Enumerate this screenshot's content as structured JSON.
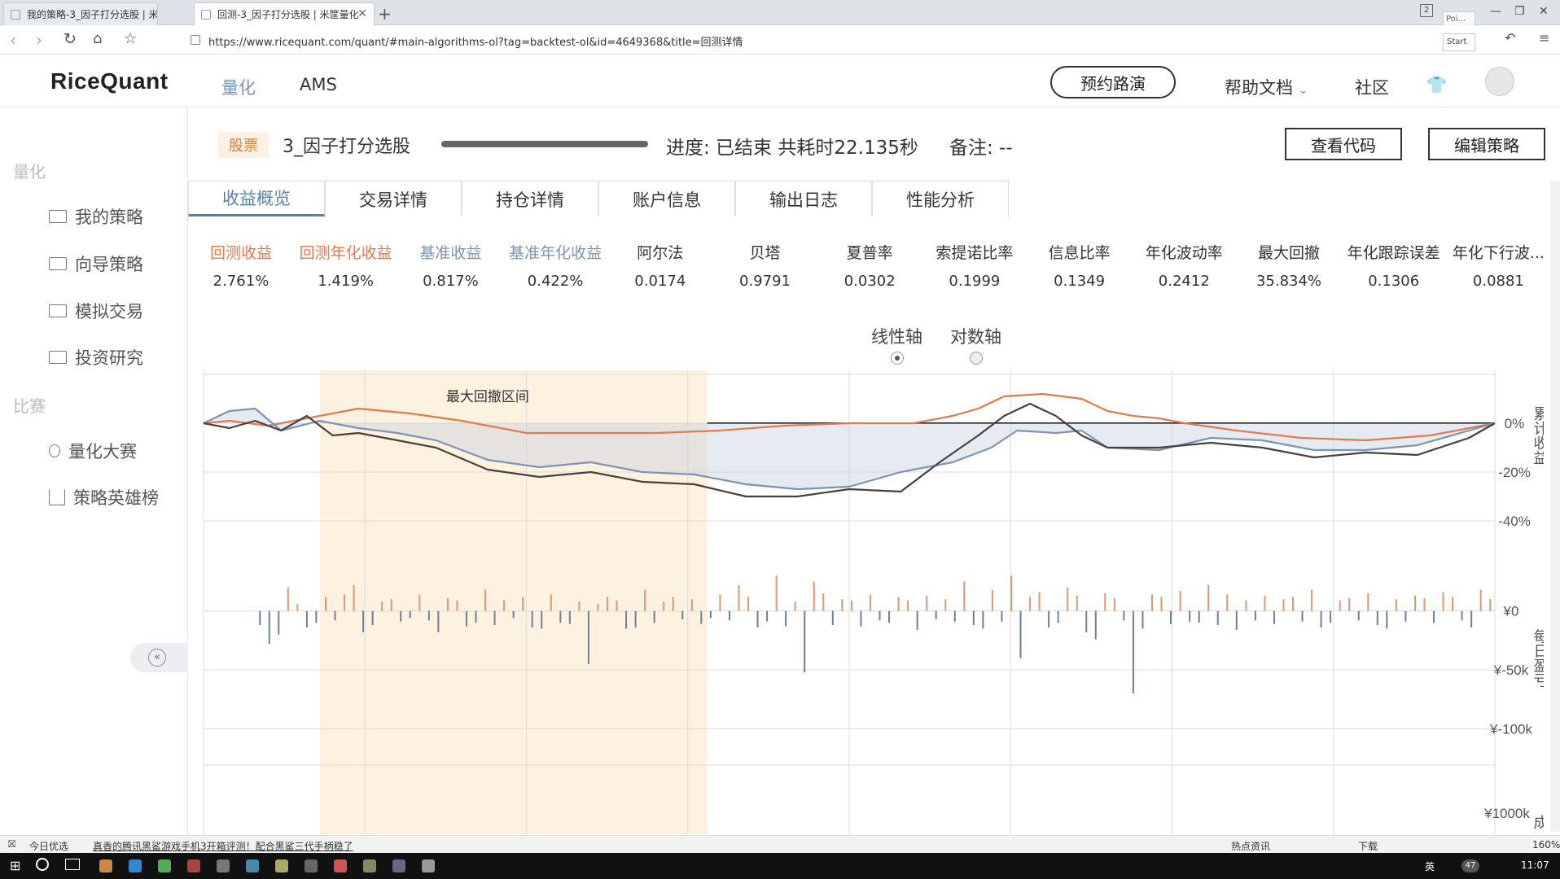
{
  "browser": {
    "tabs": [
      {
        "title": "我的策略-3_因子打分选股 | 米筐"
      },
      {
        "title": "回测-3_因子打分选股 | 米筐量化"
      }
    ],
    "tab_counter": "2",
    "url": "https://www.ricequant.com/quant/#main-algorithms-ol?tag=backtest-ol&id=4649368&title=回测详情",
    "overlay_label_1": "Poi...",
    "overlay_label_2": "Start"
  },
  "site": {
    "logo": "RiceQuant",
    "nav": [
      "量化",
      "AMS"
    ],
    "demo_button": "预约路演",
    "help": "帮助文档",
    "community": "社区"
  },
  "sidebar": {
    "section1": "量化",
    "items1": [
      "我的策略",
      "向导策略",
      "模拟交易",
      "投资研究"
    ],
    "section2": "比赛",
    "items2": [
      "量化大赛",
      "策略英雄榜"
    ]
  },
  "header": {
    "tag": "股票",
    "strategy_name": "3_因子打分选股",
    "progress": "进度: 已结束 共耗时22.135秒",
    "note": "备注: --",
    "view_code": "查看代码",
    "edit_strategy": "编辑策略"
  },
  "tabs": [
    "收益概览",
    "交易详情",
    "持仓详情",
    "账户信息",
    "输出日志",
    "性能分析"
  ],
  "metrics": [
    {
      "label": "回测收益",
      "value": "2.761%",
      "color": "#e07b4f"
    },
    {
      "label": "回测年化收益",
      "value": "1.419%",
      "color": "#e07b4f"
    },
    {
      "label": "基准收益",
      "value": "0.817%",
      "color": "#7d94b4"
    },
    {
      "label": "基准年化收益",
      "value": "0.422%",
      "color": "#7d94b4"
    },
    {
      "label": "阿尔法",
      "value": "0.0174",
      "color": "#333333"
    },
    {
      "label": "贝塔",
      "value": "0.9791",
      "color": "#333333"
    },
    {
      "label": "夏普率",
      "value": "0.0302",
      "color": "#333333"
    },
    {
      "label": "索提诺比率",
      "value": "0.1999",
      "color": "#333333"
    },
    {
      "label": "信息比率",
      "value": "0.1349",
      "color": "#333333"
    },
    {
      "label": "年化波动率",
      "value": "0.2412",
      "color": "#333333"
    },
    {
      "label": "最大回撤",
      "value": "35.834%",
      "color": "#333333"
    },
    {
      "label": "年化跟踪误差",
      "value": "0.1306",
      "color": "#333333"
    },
    {
      "label": "年化下行波...",
      "value": "0.0881",
      "color": "#333333"
    }
  ],
  "axis_toggle": {
    "linear": "线性轴",
    "log": "对数轴",
    "selected": "linear"
  },
  "chart_data": [
    {
      "type": "line",
      "annotation": "最大回撤区间",
      "ylabel": "累计收益",
      "ytick_labels": [
        "0%",
        "-20%",
        "-40%"
      ],
      "yticks": [
        0,
        -20,
        -40
      ],
      "ylim": [
        -45,
        20
      ],
      "x_range": [
        0,
        1
      ],
      "drawdown_window": [
        0.09,
        0.39
      ],
      "grid": true,
      "series": [
        {
          "color": "#e07b4f",
          "x": [
            0,
            0.02,
            0.05,
            0.09,
            0.12,
            0.16,
            0.2,
            0.25,
            0.3,
            0.35,
            0.4,
            0.45,
            0.5,
            0.55,
            0.58,
            0.6,
            0.62,
            0.65,
            0.68,
            0.7,
            0.72,
            0.74,
            0.76,
            0.8,
            0.85,
            0.9,
            0.95,
            1.0
          ],
          "y": [
            0,
            1,
            -1,
            3,
            6,
            4,
            1,
            -4,
            -4,
            -4,
            -3,
            -1,
            0,
            0,
            3,
            6,
            11,
            12,
            10,
            5,
            3,
            2,
            0,
            -3,
            -6,
            -7,
            -5,
            0
          ]
        },
        {
          "color": "#7d94b4",
          "x": [
            0,
            0.02,
            0.04,
            0.06,
            0.09,
            0.12,
            0.15,
            0.18,
            0.22,
            0.26,
            0.3,
            0.34,
            0.38,
            0.42,
            0.46,
            0.5,
            0.54,
            0.58,
            0.61,
            0.63,
            0.66,
            0.68,
            0.7,
            0.74,
            0.78,
            0.82,
            0.86,
            0.9,
            0.94,
            0.98,
            1.0
          ],
          "y": [
            0,
            5,
            6,
            -3,
            1,
            -2,
            -4,
            -7,
            -15,
            -18,
            -16,
            -20,
            -21,
            -25,
            -27,
            -26,
            -20,
            -16,
            -10,
            -3,
            -4,
            -3,
            -10,
            -11,
            -6,
            -7,
            -11,
            -11,
            -9,
            -3,
            0
          ]
        },
        {
          "color": "#4a403d",
          "x": [
            0,
            0.02,
            0.04,
            0.06,
            0.08,
            0.1,
            0.12,
            0.15,
            0.18,
            0.22,
            0.26,
            0.3,
            0.34,
            0.38,
            0.42,
            0.46,
            0.5,
            0.54,
            0.57,
            0.6,
            0.62,
            0.64,
            0.66,
            0.68,
            0.7,
            0.74,
            0.78,
            0.82,
            0.86,
            0.9,
            0.94,
            0.98,
            1.0
          ],
          "y": [
            0,
            -2,
            1,
            -3,
            3,
            -5,
            -4,
            -7,
            -10,
            -19,
            -22,
            -20,
            -24,
            -25,
            -30,
            -30,
            -27,
            -28,
            -16,
            -5,
            3,
            8,
            3,
            -5,
            -10,
            -10,
            -8,
            -10,
            -14,
            -12,
            -13,
            -6,
            0
          ]
        }
      ]
    },
    {
      "type": "bar",
      "ylabel": "每日盈亏",
      "ytick_labels": [
        "¥0",
        "¥-50k",
        "¥-100k"
      ],
      "yticks": [
        0,
        -50,
        -100
      ],
      "ylim": [
        -110,
        35
      ],
      "x_range": [
        0.04,
        1.0
      ],
      "positive_color": "#e09670",
      "negative_color": "#6f7f9a",
      "values": [
        -12,
        -28,
        -20,
        20,
        6,
        -14,
        -10,
        12,
        -8,
        14,
        22,
        -18,
        -12,
        8,
        10,
        -9,
        -6,
        14,
        -8,
        -18,
        11,
        9,
        -13,
        -10,
        18,
        -12,
        9,
        -6,
        12,
        -14,
        -15,
        14,
        -10,
        -11,
        8,
        -45,
        6,
        12,
        9,
        -15,
        -14,
        18,
        -10,
        8,
        12,
        -7,
        10,
        -11,
        -6,
        14,
        -8,
        22,
        12,
        -14,
        -9,
        30,
        -13,
        8,
        -52,
        25,
        15,
        -12,
        10,
        9,
        -13,
        14,
        -8,
        -10,
        12,
        9,
        -16,
        13,
        -7,
        10,
        -9,
        25,
        -12,
        -15,
        18,
        -9,
        30,
        -40,
        12,
        16,
        -14,
        -10,
        20,
        13,
        -18,
        -24,
        15,
        11,
        -8,
        -70,
        -15,
        14,
        12,
        -11,
        17,
        -9,
        -10,
        22,
        -12,
        14,
        -16,
        9,
        -8,
        13,
        -11,
        10,
        12,
        -9,
        18,
        -14,
        -10,
        9,
        11,
        -8,
        15,
        -12,
        -15,
        10,
        -9,
        13,
        11,
        -10,
        16,
        12,
        -8,
        -14,
        18,
        10
      ]
    },
    {
      "type": "bar",
      "ytick_labels": [
        "¥1000k"
      ],
      "yticks": [
        1000
      ],
      "ylabel": "成",
      "values": []
    }
  ],
  "status": {
    "left": "今日优选",
    "news": "真香的腾讯黑鲨游戏手机3开箱评测！配合黑鲨三代手柄稳了",
    "hot": "热点资讯",
    "download": "下载",
    "zoom": "160%"
  },
  "taskbar": {
    "lang": "英",
    "time": "11:07",
    "badge": "47"
  }
}
